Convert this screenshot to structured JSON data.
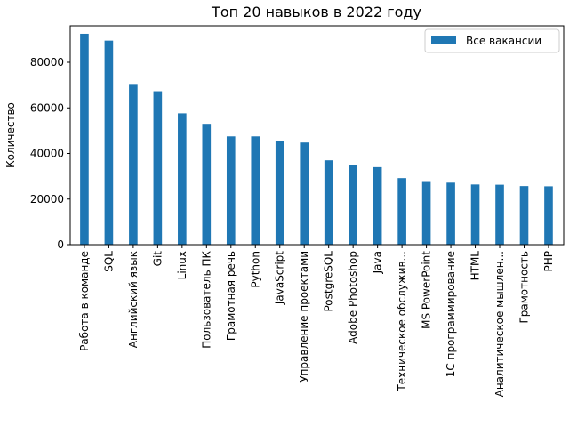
{
  "chart_data": {
    "type": "bar",
    "title": "Топ 20 навыков в 2022 году",
    "xlabel": "",
    "ylabel": "Количество",
    "ylim": [
      0,
      96000
    ],
    "yticks": [
      0,
      20000,
      40000,
      60000,
      80000
    ],
    "ytick_labels": [
      "0",
      "20000",
      "40000",
      "60000",
      "80000"
    ],
    "grid": false,
    "legend_position": "top-right",
    "color": "#1f77b4",
    "categories": [
      "Работа в команде",
      "SQL",
      "Английский язык",
      "Git",
      "Linux",
      "Пользователь ПК",
      "Грамотная речь",
      "Python",
      "JavaScript",
      "Управление проектами",
      "PostgreSQL",
      "Adobe Photoshop",
      "Java",
      "Техническое обслужив...",
      "MS PowerPoint",
      "1С программирование",
      "HTML",
      "Аналитическое мышлен...",
      "Грамотность",
      "PHP"
    ],
    "series": [
      {
        "name": "Все вакансии",
        "values": [
          92500,
          89500,
          70500,
          67300,
          57600,
          53000,
          47500,
          47500,
          45600,
          44800,
          37000,
          35000,
          34000,
          29200,
          27500,
          27200,
          26400,
          26300,
          25700,
          25600
        ]
      }
    ]
  }
}
